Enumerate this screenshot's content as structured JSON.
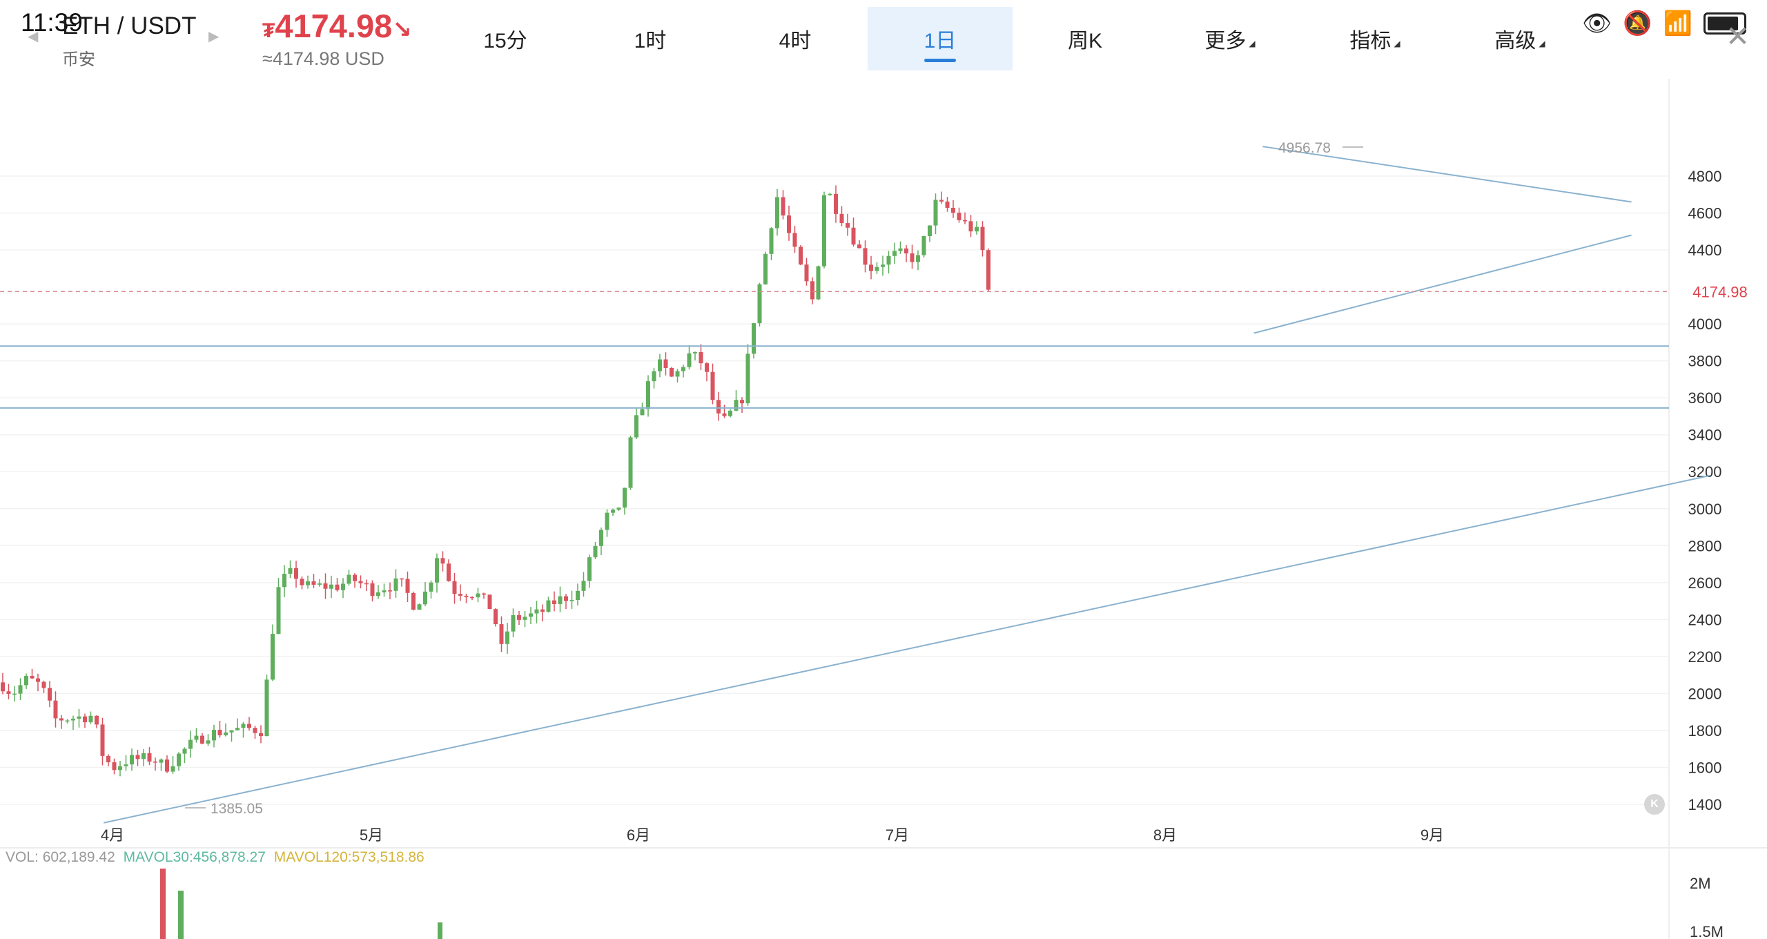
{
  "status_bar": {
    "time": "11:39"
  },
  "header": {
    "pair": "ETH / USDT",
    "exchange": "币安",
    "price": "4174.98",
    "price_symbol": "₮",
    "price_arrow": "↘",
    "price_usd": "≈4174.98 USD"
  },
  "tabs": [
    {
      "label": "15分",
      "active": false,
      "dropdown": false
    },
    {
      "label": "1时",
      "active": false,
      "dropdown": false
    },
    {
      "label": "4时",
      "active": false,
      "dropdown": false
    },
    {
      "label": "1日",
      "active": true,
      "dropdown": false
    },
    {
      "label": "周K",
      "active": false,
      "dropdown": false
    },
    {
      "label": "更多",
      "active": false,
      "dropdown": true
    },
    {
      "label": "指标",
      "active": false,
      "dropdown": true
    },
    {
      "label": "高级",
      "active": false,
      "dropdown": true
    }
  ],
  "icons": [
    "eye-icon",
    "mute-icon",
    "wifi-icon",
    "battery-icon",
    "close-icon",
    "settings-icon"
  ],
  "chart_data": {
    "type": "candlestick",
    "y_axis": {
      "min": 1400,
      "max": 4800,
      "ticks": [
        4800,
        4600,
        4400,
        4000,
        3800,
        3600,
        3400,
        3200,
        3000,
        2800,
        2600,
        2400,
        2200,
        2000,
        1800,
        1600,
        1400
      ]
    },
    "x_axis": {
      "labels": [
        "4月",
        "5月",
        "6月",
        "7月",
        "8月",
        "9月"
      ]
    },
    "current_price": "4174.98",
    "max_label": "4956.78",
    "min_label": "1385.05",
    "colors": {
      "up": "#5fae5d",
      "down": "#d8545f",
      "trendline": "#8ab2cf",
      "price_line": "#d88b90"
    },
    "horizontal_levels": [
      3880,
      3545
    ],
    "trendlines": [
      {
        "from": [
          "2025-03-31",
          1300
        ],
        "to": [
          "2025-09-30",
          3180
        ]
      },
      {
        "from": [
          "2025-08-10",
          4960
        ],
        "to": [
          "2025-09-21",
          4660
        ]
      },
      {
        "from": [
          "2025-08-09",
          3950
        ],
        "to": [
          "2025-09-21",
          4480
        ]
      }
    ],
    "volume": {
      "label": "VOL: 602,189.42",
      "mavol30": "MAVOL30:456,878.27",
      "mavol120": "MAVOL120:573,518.86",
      "ticks": [
        "2M",
        "1.5M"
      ]
    }
  }
}
